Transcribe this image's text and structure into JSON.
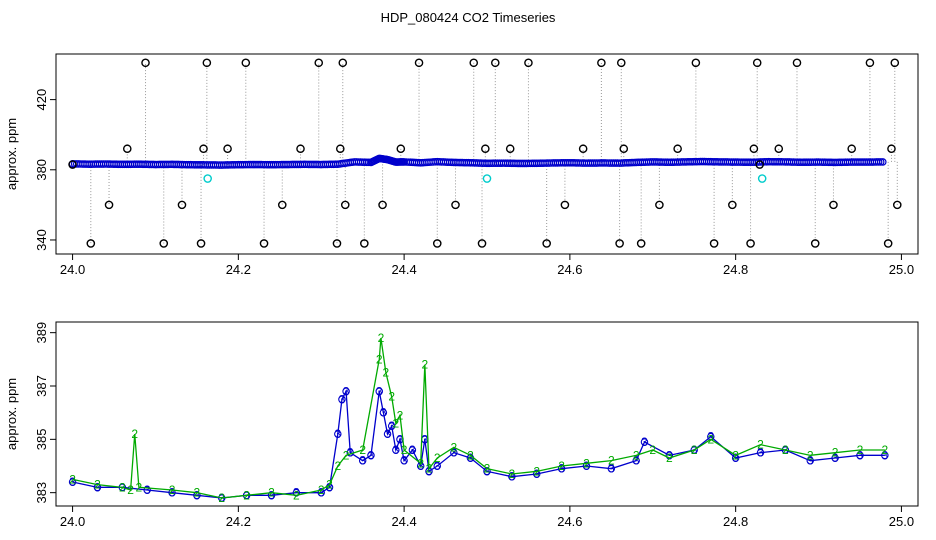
{
  "title": "HDP_080424  CO2 Timeseries",
  "colors": {
    "black": "#000000",
    "blue": "#0000cc",
    "cyan": "#00cccc",
    "green": "#00aa00",
    "gray": "#999999"
  },
  "chart_data": [
    {
      "type": "scatter",
      "ylabel": "approx. ppm",
      "xlim": [
        23.98,
        25.02
      ],
      "ylim": [
        332,
        446
      ],
      "xticks": [
        "24.0",
        "24.2",
        "24.4",
        "24.6",
        "24.8",
        "25.0"
      ],
      "yticks": [
        "340",
        "380",
        "420"
      ],
      "series": [
        {
          "color": "black",
          "x": [
            24.0,
            24.022,
            24.044,
            24.066,
            24.088,
            24.11,
            24.132,
            24.155,
            24.158,
            24.162,
            24.187,
            24.209,
            24.231,
            24.253,
            24.275,
            24.297,
            24.319,
            24.323,
            24.326,
            24.329,
            24.352,
            24.374,
            24.396,
            24.418,
            24.44,
            24.462,
            24.484,
            24.494,
            24.498,
            24.51,
            24.528,
            24.55,
            24.572,
            24.594,
            24.616,
            24.638,
            24.66,
            24.662,
            24.665,
            24.686,
            24.708,
            24.73,
            24.752,
            24.774,
            24.796,
            24.818,
            24.822,
            24.826,
            24.829,
            24.852,
            24.874,
            24.896,
            24.918,
            24.94,
            24.962,
            24.984,
            24.988,
            24.992,
            24.995
          ],
          "y": [
            383,
            338,
            360,
            392,
            441,
            338,
            360,
            338,
            392,
            441,
            392,
            441,
            338,
            360,
            392,
            441,
            338,
            392,
            441,
            360,
            338,
            360,
            392,
            441,
            338,
            360,
            441,
            338,
            392,
            441,
            392,
            441,
            338,
            360,
            392,
            441,
            338,
            441,
            392,
            338,
            360,
            392,
            441,
            338,
            360,
            338,
            392,
            441,
            383,
            392,
            441,
            338,
            360,
            392,
            441,
            338,
            392,
            441,
            360
          ]
        },
        {
          "color": "blue",
          "x": [
            24.0,
            24.02,
            24.04,
            24.06,
            24.08,
            24.1,
            24.12,
            24.14,
            24.16,
            24.18,
            24.2,
            24.22,
            24.24,
            24.26,
            24.28,
            24.3,
            24.32,
            24.34,
            24.36,
            24.37,
            24.38,
            24.39,
            24.4,
            24.42,
            24.44,
            24.46,
            24.48,
            24.5,
            24.52,
            24.54,
            24.56,
            24.58,
            24.6,
            24.62,
            24.64,
            24.66,
            24.68,
            24.7,
            24.72,
            24.74,
            24.76,
            24.78,
            24.8,
            24.82,
            24.84,
            24.86,
            24.88,
            24.9,
            24.92,
            24.94,
            24.96,
            24.98
          ],
          "y": [
            383.4,
            383.2,
            383.3,
            383.1,
            383.2,
            383.0,
            383.1,
            382.9,
            382.8,
            382.7,
            382.9,
            383.0,
            382.9,
            383.0,
            383.1,
            383.0,
            383.2,
            384.5,
            384.2,
            386.5,
            385.8,
            384.4,
            384.5,
            384.0,
            384.6,
            384.2,
            384.0,
            383.7,
            383.8,
            383.6,
            383.7,
            383.9,
            384.0,
            383.8,
            383.9,
            383.8,
            384.2,
            384.5,
            384.3,
            384.5,
            384.7,
            384.5,
            384.4,
            384.3,
            384.6,
            384.5,
            384.3,
            384.4,
            384.2,
            384.4,
            384.4,
            384.5
          ]
        },
        {
          "color": "cyan",
          "x": [
            24.163,
            24.5,
            24.832
          ],
          "y": [
            375,
            375,
            375
          ]
        }
      ]
    },
    {
      "type": "line",
      "ylabel": "approx. ppm",
      "xlim": [
        23.98,
        25.02
      ],
      "ylim": [
        382.5,
        389.4
      ],
      "xticks": [
        "24.0",
        "24.2",
        "24.4",
        "24.6",
        "24.8",
        "25.0"
      ],
      "yticks": [
        "383",
        "385",
        "387",
        "389"
      ],
      "series": [
        {
          "color": "blue",
          "label": "3",
          "x": [
            24.0,
            24.03,
            24.06,
            24.09,
            24.12,
            24.15,
            24.18,
            24.21,
            24.24,
            24.27,
            24.3,
            24.31,
            24.32,
            24.325,
            24.33,
            24.335,
            24.35,
            24.36,
            24.37,
            24.375,
            24.38,
            24.385,
            24.39,
            24.395,
            24.4,
            24.41,
            24.42,
            24.425,
            24.43,
            24.44,
            24.46,
            24.48,
            24.5,
            24.53,
            24.56,
            24.59,
            24.62,
            24.65,
            24.68,
            24.69,
            24.72,
            24.75,
            24.77,
            24.8,
            24.83,
            24.86,
            24.89,
            24.92,
            24.95,
            24.98
          ],
          "y": [
            383.4,
            383.2,
            383.2,
            383.1,
            383.0,
            382.9,
            382.8,
            382.9,
            382.9,
            383.0,
            383.0,
            383.2,
            385.2,
            386.5,
            386.8,
            384.5,
            384.2,
            384.4,
            386.8,
            386.0,
            385.2,
            385.5,
            384.6,
            385.0,
            384.2,
            384.6,
            384.0,
            385.0,
            383.8,
            384.0,
            384.5,
            384.3,
            383.8,
            383.6,
            383.7,
            383.9,
            384.0,
            383.9,
            384.2,
            384.9,
            384.4,
            384.6,
            385.1,
            384.3,
            384.5,
            384.6,
            384.2,
            384.3,
            384.4,
            384.4
          ]
        },
        {
          "color": "green",
          "label": "2",
          "x": [
            24.0,
            24.03,
            24.06,
            24.07,
            24.075,
            24.08,
            24.12,
            24.15,
            24.18,
            24.21,
            24.24,
            24.27,
            24.3,
            24.31,
            24.32,
            24.33,
            24.35,
            24.37,
            24.372,
            24.378,
            24.385,
            24.39,
            24.395,
            24.4,
            24.42,
            24.425,
            24.43,
            24.44,
            24.46,
            24.48,
            24.5,
            24.53,
            24.56,
            24.59,
            24.62,
            24.65,
            24.68,
            24.7,
            24.72,
            24.75,
            24.77,
            24.8,
            24.83,
            24.86,
            24.89,
            24.92,
            24.95,
            24.98
          ],
          "y": [
            383.5,
            383.3,
            383.2,
            383.1,
            385.2,
            383.2,
            383.1,
            383.0,
            382.8,
            382.9,
            383.0,
            382.9,
            383.1,
            383.3,
            384.0,
            384.4,
            384.6,
            388.0,
            388.8,
            387.5,
            386.6,
            385.6,
            385.9,
            384.6,
            384.1,
            387.8,
            383.9,
            384.3,
            384.7,
            384.4,
            383.9,
            383.7,
            383.8,
            384.0,
            384.1,
            384.2,
            384.4,
            384.6,
            384.3,
            384.6,
            385.0,
            384.4,
            384.8,
            384.6,
            384.4,
            384.5,
            384.6,
            384.6
          ]
        }
      ]
    }
  ]
}
